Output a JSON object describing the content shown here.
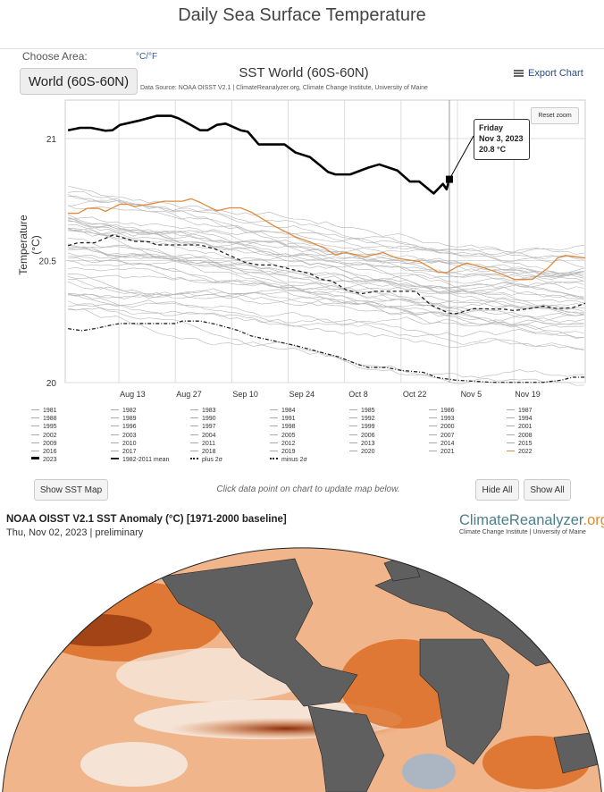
{
  "page_title": "Daily Sea Surface Temperature",
  "controls": {
    "choose_area_label": "Choose Area:",
    "unit_toggle": "°C/°F",
    "area_selected": "World (60S-60N)",
    "export_label": "Export Chart",
    "reset_zoom": "Reset zoom",
    "show_map": "Show SST Map",
    "hint": "Click data point on chart to update map below.",
    "hide_all": "Hide All",
    "show_all": "Show All"
  },
  "tooltip": {
    "day": "Friday",
    "date": "Nov 3, 2023",
    "value": "20.8 °C"
  },
  "chart_data": {
    "type": "line",
    "title": "SST World (60S-60N)",
    "subtitle": "Data Source: NOAA OISST V2.1 | ClimateReanalyzer.org, Climate Change Institute, University of Maine",
    "ylabel": "Temperature (°C)",
    "xlabel": "",
    "x_unit": "days since Jul 28",
    "xlim": [
      -0.7,
      128.3
    ],
    "ylim": [
      19.99,
      21.16
    ],
    "yticks": [
      {
        "v": 20,
        "label": "20"
      },
      {
        "v": 20.5,
        "label": "20.5"
      },
      {
        "v": 21,
        "label": "21"
      }
    ],
    "xticks": [
      {
        "v": 16,
        "label": "Aug 13"
      },
      {
        "v": 30,
        "label": "Aug 27"
      },
      {
        "v": 44,
        "label": "Sep 10"
      },
      {
        "v": 58,
        "label": "Sep 24"
      },
      {
        "v": 72,
        "label": "Oct 8"
      },
      {
        "v": 86,
        "label": "Oct 22"
      },
      {
        "v": 100,
        "label": "Nov 5"
      },
      {
        "v": 114,
        "label": "Nov 19"
      }
    ],
    "grid": true,
    "highlight_x": 94.6,
    "legend_years": [
      "1981",
      "1982",
      "1983",
      "1984",
      "1985",
      "1986",
      "1987",
      "1988",
      "1989",
      "1990",
      "1991",
      "1992",
      "1993",
      "1994",
      "1995",
      "1996",
      "1997",
      "1998",
      "1999",
      "2000",
      "2001",
      "2002",
      "2003",
      "2004",
      "2005",
      "2006",
      "2007",
      "2008",
      "2009",
      "2010",
      "2011",
      "2012",
      "2013",
      "2014",
      "2015",
      "2016",
      "2017",
      "2018",
      "2019",
      "2020",
      "2021",
      "2022"
    ],
    "series": [
      {
        "name": "2023",
        "color": "#000000",
        "style": "bold",
        "x": [
          0,
          3,
          5.7,
          9.3,
          11,
          12.9,
          17.5,
          22,
          25.6,
          27.4,
          30.1,
          32.8,
          34.6,
          36.9,
          39.1,
          42.8,
          44.6,
          47.3,
          53.7,
          56.4,
          60,
          62.7,
          64.5,
          66.3,
          70,
          74.5,
          77.2,
          81.7,
          84.8,
          87.1,
          90.7,
          93,
          93.9,
          94.6
        ],
        "y": [
          21.034,
          21.044,
          21.044,
          21.032,
          21.034,
          21.056,
          21.073,
          21.093,
          21.093,
          21.083,
          21.059,
          21.034,
          21.034,
          21.056,
          21.061,
          21.034,
          21.028,
          20.976,
          20.976,
          20.943,
          20.924,
          20.888,
          20.863,
          20.853,
          20.853,
          20.881,
          20.894,
          20.869,
          20.824,
          20.824,
          20.775,
          20.814,
          20.792,
          20.833
        ]
      },
      {
        "name": "1982-2011 mean",
        "color": "#222222",
        "style": "dash",
        "x": [
          0,
          2.5,
          6.6,
          11.1,
          12.9,
          16.5,
          20.2,
          22,
          32.8,
          36.4,
          40.1,
          43.7,
          47.3,
          51,
          56.4,
          60,
          62.7,
          65.4,
          69,
          72.7,
          76.3,
          86.2,
          89.9,
          94.4,
          96.2,
          100.7,
          108,
          110.7,
          114.3,
          117.9,
          121.5,
          125.2,
          128.3
        ],
        "y": [
          20.561,
          20.573,
          20.573,
          20.604,
          20.597,
          20.579,
          20.577,
          20.564,
          20.564,
          20.548,
          20.521,
          20.494,
          20.482,
          20.482,
          20.46,
          20.447,
          20.423,
          20.417,
          20.38,
          20.364,
          20.374,
          20.374,
          20.319,
          20.285,
          20.282,
          20.303,
          20.301,
          20.295,
          20.303,
          20.313,
          20.303,
          20.307,
          20.325
        ]
      },
      {
        "name": "plus 2σ",
        "color": "#222222",
        "style": "dashdot",
        "x": [],
        "y": []
      },
      {
        "name": "minus 2σ",
        "color": "#222222",
        "style": "dashdot",
        "x": [
          0,
          3.4,
          6.6,
          11.1,
          12.9,
          26.5,
          28.3,
          32.8,
          36.4,
          41.9,
          45.5,
          51,
          56.4,
          60,
          67.2,
          71.8,
          74.5,
          79,
          82.6,
          88.1,
          91.7,
          96.2,
          105.2,
          117.9,
          122.4,
          125.2,
          128.3
        ],
        "y": [
          20.221,
          20.213,
          20.221,
          20.237,
          20.242,
          20.242,
          20.252,
          20.252,
          20.24,
          20.215,
          20.191,
          20.171,
          20.152,
          20.136,
          20.105,
          20.075,
          20.062,
          20.062,
          20.05,
          20.042,
          20.02,
          20.01,
          20.001,
          20.001,
          20.01,
          20.022,
          20.022
        ]
      },
      {
        "name": "2022",
        "color": "#e08a3c",
        "style": "solid",
        "x": [
          0,
          2.5,
          4.8,
          7.5,
          9.3,
          12.9,
          14.7,
          16.5,
          20.2,
          23.8,
          28.3,
          30.6,
          32.8,
          36.9,
          40.1,
          42.8,
          45.5,
          51,
          56.4,
          60,
          63.6,
          66.3,
          69,
          73.6,
          78.1,
          81.7,
          87.2,
          91.7,
          93.9,
          96.2,
          98.9,
          102.5,
          106.1,
          110.7,
          115.2,
          118.8,
          121.5,
          123.3,
          128.3
        ],
        "y": [
          20.694,
          20.694,
          20.714,
          20.714,
          20.702,
          20.731,
          20.731,
          20.722,
          20.731,
          20.743,
          20.743,
          20.753,
          20.738,
          20.704,
          20.716,
          20.716,
          20.698,
          20.643,
          20.597,
          20.576,
          20.551,
          20.523,
          20.533,
          20.515,
          20.533,
          20.509,
          20.496,
          20.454,
          20.45,
          20.472,
          20.49,
          20.474,
          20.454,
          20.423,
          20.423,
          20.466,
          20.511,
          20.521,
          20.511
        ]
      }
    ]
  },
  "map": {
    "title": "NOAA OISST V2.1 SST Anomaly (°C) [1971-2000 baseline]",
    "date": "Thu, Nov 02, 2023 | preliminary",
    "logo_main": "ClimateReanalyzer",
    "logo_tld": ".org",
    "logo_sub": "Climate Change Institute | University of Maine",
    "colors": {
      "warm": "#d9691e",
      "hot": "#8a2e0a",
      "neutral": "#f6efe8",
      "cool": "#8fb6da",
      "land": "#5f5f5f"
    }
  }
}
